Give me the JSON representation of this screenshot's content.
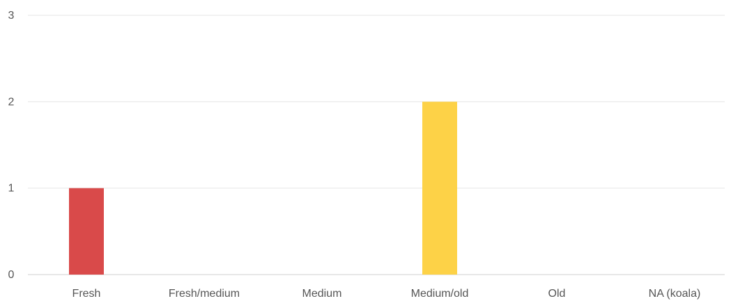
{
  "chart_data": {
    "type": "bar",
    "categories": [
      "Fresh",
      "Fresh/medium",
      "Medium",
      "Medium/old",
      "Old",
      "NA (koala)"
    ],
    "values": [
      1,
      0,
      0,
      2,
      0,
      0
    ],
    "bar_colors": [
      "#d94a4a",
      "#d94a4a",
      "#d94a4a",
      "#fdd247",
      "#d94a4a",
      "#d94a4a"
    ],
    "title": "",
    "xlabel": "",
    "ylabel": "",
    "ylim": [
      0,
      3
    ],
    "yticks": [
      "0",
      "1",
      "2",
      "3"
    ],
    "grid": true,
    "gridline_color": "#e6e6e6",
    "legend": "none"
  }
}
